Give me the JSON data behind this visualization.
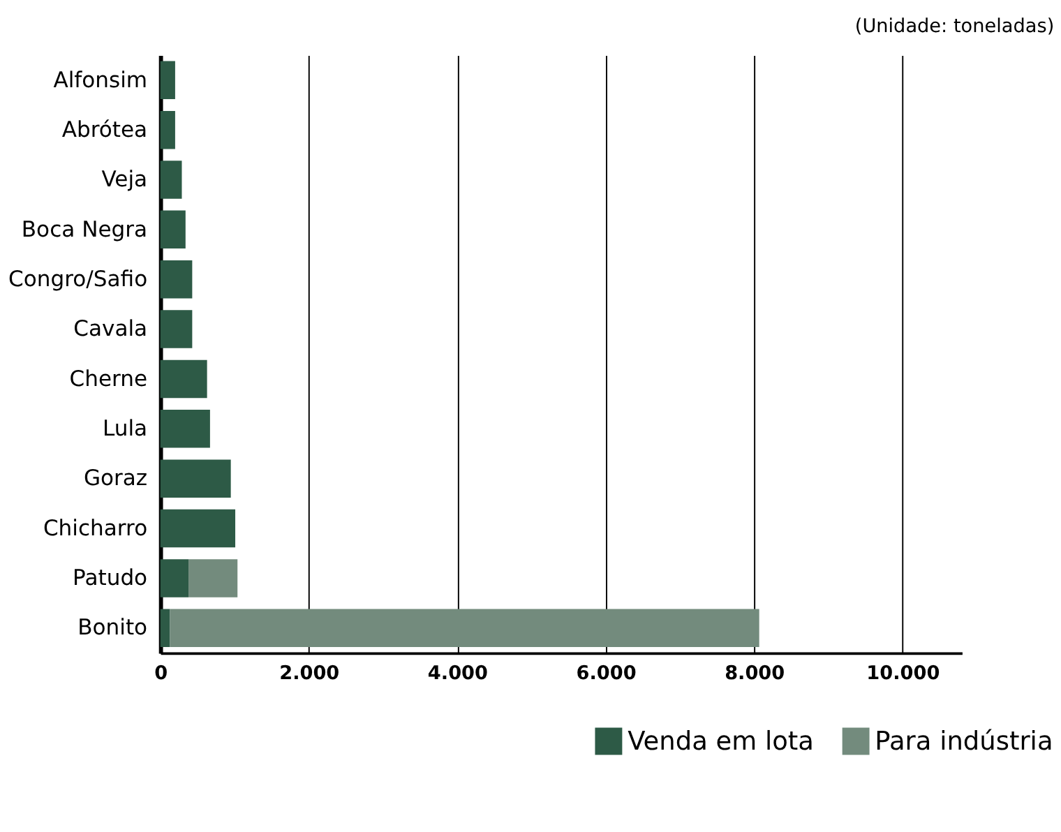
{
  "chart_data": {
    "type": "bar",
    "orientation": "horizontal",
    "stacked": true,
    "categories": [
      "Alfonsim",
      "Abrótea",
      "Veja",
      "Boca Negra",
      "Congro/Safio",
      "Cavala",
      "Cherne",
      "Lula",
      "Goraz",
      "Chicharro",
      "Patudo",
      "Bonito"
    ],
    "series": [
      {
        "name": "Venda em lota",
        "color": "#2d5a46",
        "values": [
          200,
          200,
          290,
          340,
          430,
          430,
          630,
          670,
          950,
          1010,
          380,
          130
        ]
      },
      {
        "name": "Para indústria",
        "color": "#738b7d",
        "values": [
          null,
          null,
          null,
          null,
          null,
          null,
          null,
          null,
          null,
          null,
          660,
          7940
        ]
      }
    ],
    "xlim": [
      0,
      10800
    ],
    "xticks": [
      0,
      {
        "value": 2000,
        "label": "2.000"
      },
      {
        "value": 4000,
        "label": "4.000"
      },
      {
        "value": 6000,
        "label": "6.000"
      },
      {
        "value": 8000,
        "label": "8.000"
      },
      {
        "value": 10000,
        "label": "10.000"
      }
    ],
    "grid": "x",
    "legend": "bottom right",
    "annotations": [
      "(Unidade: toneladas)"
    ]
  }
}
